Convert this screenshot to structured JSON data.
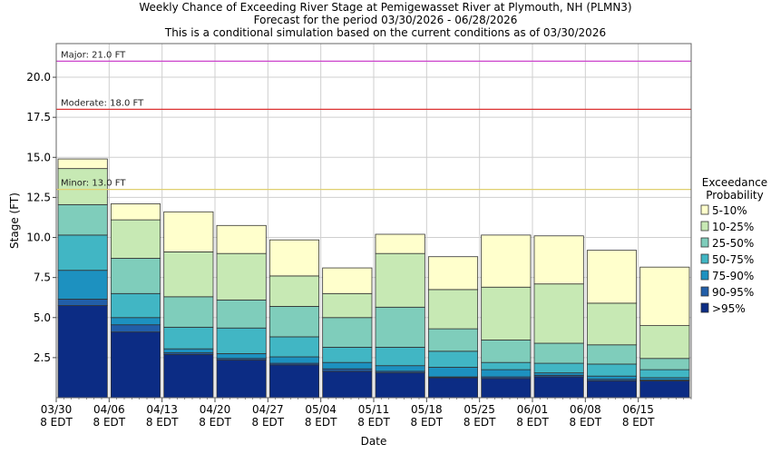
{
  "chart_data": {
    "type": "bar",
    "title_lines": [
      "Weekly Chance of Exceeding River Stage at Pemigewasset River at Plymouth, NH (PLMN3)",
      "Forecast for the period 03/30/2026 - 06/28/2026",
      "This is a conditional simulation based on the current conditions as of 03/30/2026"
    ],
    "xlabel": "Date",
    "ylabel": "Stage (FT)",
    "ylim": [
      0,
      22.1
    ],
    "y_ticks": [
      "2.5",
      "5.0",
      "7.5",
      "10.0",
      "12.5",
      "15.0",
      "17.5",
      "20.0"
    ],
    "x_ticks": [
      {
        "date": "03/30",
        "tz": "8 EDT"
      },
      {
        "date": "04/06",
        "tz": "8 EDT"
      },
      {
        "date": "04/13",
        "tz": "8 EDT"
      },
      {
        "date": "04/20",
        "tz": "8 EDT"
      },
      {
        "date": "04/27",
        "tz": "8 EDT"
      },
      {
        "date": "05/04",
        "tz": "8 EDT"
      },
      {
        "date": "05/11",
        "tz": "8 EDT"
      },
      {
        "date": "05/18",
        "tz": "8 EDT"
      },
      {
        "date": "05/25",
        "tz": "8 EDT"
      },
      {
        "date": "06/01",
        "tz": "8 EDT"
      },
      {
        "date": "06/08",
        "tz": "8 EDT"
      },
      {
        "date": "06/15",
        "tz": "8 EDT"
      }
    ],
    "grid": true,
    "thresholds": [
      {
        "label": "Major: 21.0 FT",
        "value": 21.0,
        "color": "#cc44cc"
      },
      {
        "label": "Moderate: 18.0 FT",
        "value": 18.0,
        "color": "#dd3333"
      },
      {
        "label": "Minor: 13.0 FT",
        "value": 13.0,
        "color": "#e0d070"
      }
    ],
    "legend": {
      "title_lines": [
        "Exceedance",
        "Probability"
      ],
      "placement": "right",
      "entries": [
        {
          "label": "5-10%",
          "color": "#ffffcc"
        },
        {
          "label": "10-25%",
          "color": "#c7e9b4"
        },
        {
          "label": "25-50%",
          "color": "#7fcdbb"
        },
        {
          "label": "50-75%",
          "color": "#41b6c4"
        },
        {
          "label": "75-90%",
          "color": "#1d91c0"
        },
        {
          "label": "90-95%",
          "color": "#225ea8"
        },
        {
          "label": ">95%",
          "color": "#0c2c84"
        }
      ]
    },
    "weeks": [
      {
        "start": "03/30",
        "values": [
          5.75,
          6.15,
          7.95,
          10.15,
          12.05,
          14.3,
          14.9
        ]
      },
      {
        "start": "04/06",
        "values": [
          4.1,
          4.55,
          5.0,
          6.5,
          8.7,
          11.1,
          12.1
        ]
      },
      {
        "start": "04/13",
        "values": [
          2.7,
          2.8,
          3.05,
          4.4,
          6.3,
          9.1,
          11.6
        ]
      },
      {
        "start": "04/20",
        "values": [
          2.35,
          2.45,
          2.75,
          4.35,
          6.1,
          9.0,
          10.75
        ]
      },
      {
        "start": "04/27",
        "values": [
          2.05,
          2.15,
          2.55,
          3.8,
          5.7,
          7.6,
          9.85
        ]
      },
      {
        "start": "05/04",
        "values": [
          1.65,
          1.8,
          2.2,
          3.15,
          5.0,
          6.5,
          8.1
        ]
      },
      {
        "start": "05/11",
        "values": [
          1.55,
          1.65,
          2.0,
          3.15,
          5.65,
          9.0,
          10.2
        ]
      },
      {
        "start": "05/18",
        "values": [
          1.25,
          1.3,
          1.9,
          2.9,
          4.3,
          6.75,
          8.8
        ]
      },
      {
        "start": "05/25",
        "values": [
          1.2,
          1.3,
          1.75,
          2.2,
          3.6,
          6.9,
          10.15
        ]
      },
      {
        "start": "06/01",
        "values": [
          1.3,
          1.4,
          1.55,
          2.15,
          3.4,
          7.1,
          10.1
        ]
      },
      {
        "start": "06/08",
        "values": [
          1.05,
          1.15,
          1.35,
          2.1,
          3.3,
          5.9,
          9.2
        ]
      },
      {
        "start": "06/15",
        "values": [
          1.05,
          1.1,
          1.25,
          1.75,
          2.45,
          4.5,
          8.15
        ]
      }
    ]
  }
}
